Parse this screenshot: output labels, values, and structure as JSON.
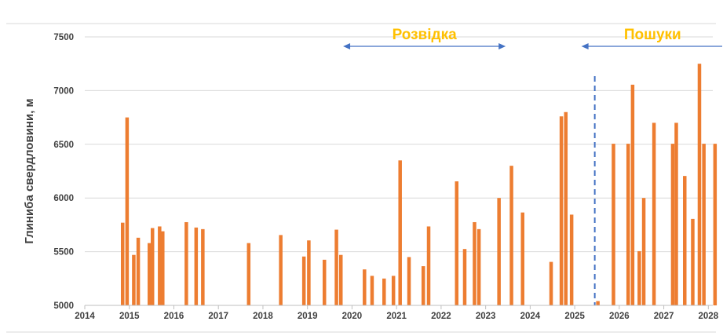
{
  "chart_data": {
    "type": "bar",
    "title": "",
    "xlabel": "",
    "ylabel": "Глиниба свердловини, м",
    "xlim": [
      2014,
      2028.1
    ],
    "ylim": [
      5000,
      7500
    ],
    "x_ticks": [
      "2014",
      "2015",
      "2016",
      "2017",
      "2018",
      "2019",
      "2020",
      "2021",
      "2022",
      "2023",
      "2024",
      "2025",
      "2026",
      "2027",
      "2028"
    ],
    "y_ticks": [
      "5000",
      "5500",
      "6000",
      "6500",
      "7000",
      "7500"
    ],
    "grid": true,
    "legend": "none",
    "bar_color": "#ED7D31",
    "annotation_color": "#4472C4",
    "label_color": "#FFC000",
    "annotations": [
      {
        "name": "razvidka",
        "label": "Розвідка",
        "start_year": 2019.8,
        "end_year": 2023.45
      },
      {
        "name": "poshuky",
        "label": "Пошуки",
        "start_year": 2025.15,
        "end_year": 2028.5
      }
    ],
    "divider_year": 2025.45,
    "series": [
      {
        "x": [
          2014.85,
          2014.95,
          2015.1,
          2015.2,
          2015.45,
          2015.52,
          2015.68,
          2015.75,
          2016.28,
          2016.5,
          2016.65,
          2017.68,
          2018.4,
          2018.92,
          2019.03,
          2019.38,
          2019.65,
          2019.75,
          2020.28,
          2020.45,
          2020.72,
          2020.93,
          2021.08,
          2021.28,
          2021.6,
          2021.72,
          2022.35,
          2022.53,
          2022.75,
          2022.85,
          2023.3,
          2023.58,
          2023.83,
          2024.47,
          2024.7,
          2024.8,
          2024.93,
          2025.52,
          2025.87,
          2026.2,
          2026.3,
          2026.45,
          2026.55,
          2026.78,
          2027.2,
          2027.28,
          2027.47,
          2027.65,
          2027.8,
          2027.9,
          2028.15
        ],
        "values": [
          5770,
          6750,
          5470,
          5630,
          5580,
          5720,
          5735,
          5690,
          5775,
          5725,
          5710,
          5580,
          5655,
          5455,
          5605,
          5425,
          5705,
          5470,
          5335,
          5275,
          5250,
          5275,
          6350,
          5450,
          5365,
          5735,
          6155,
          5525,
          5775,
          5710,
          6000,
          6300,
          5865,
          5405,
          6760,
          6800,
          5845,
          5040,
          6505,
          6505,
          7055,
          5505,
          6000,
          6700,
          6505,
          6700,
          6205,
          5805,
          7250,
          6505,
          6505
        ]
      }
    ]
  }
}
